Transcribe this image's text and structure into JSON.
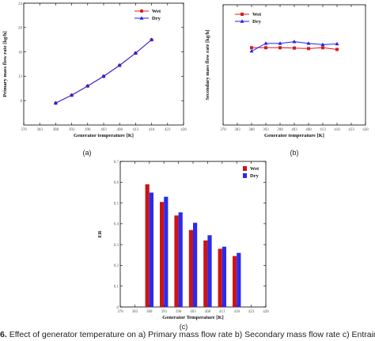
{
  "chart_data": [
    {
      "id": "a",
      "type": "line",
      "panel_label": "(a)",
      "xlabel": "Generator temperature [K]",
      "ylabel": "Primary mass flow rate [kg/h]",
      "xlim": [
        378,
        428
      ],
      "ylim": [
        4,
        24
      ],
      "xticks": [
        378,
        383,
        388,
        393,
        398,
        403,
        408,
        413,
        418,
        423,
        428
      ],
      "yticks": [
        8,
        12,
        16,
        20,
        24
      ],
      "x": [
        388,
        393,
        398,
        403,
        408,
        413,
        418
      ],
      "series": [
        {
          "name": "Wet",
          "color": "#d81b1b",
          "marker": "circle",
          "values": [
            7.6,
            8.9,
            10.4,
            12.0,
            13.8,
            15.8,
            18.0
          ]
        },
        {
          "name": "Dry",
          "color": "#2222ee",
          "marker": "triangle",
          "values": [
            7.6,
            8.9,
            10.4,
            12.0,
            13.8,
            15.8,
            18.0
          ]
        }
      ],
      "legend": "top-right",
      "grid": false
    },
    {
      "id": "b",
      "type": "line",
      "panel_label": "(b)",
      "xlabel": "Generator temperature [K]",
      "ylabel": "Secondary mass flow rate [kg/h]",
      "xlim": [
        378,
        428
      ],
      "ylim": [
        0,
        7
      ],
      "xticks": [
        378,
        383,
        388,
        393,
        398,
        403,
        408,
        413,
        418,
        423,
        428
      ],
      "yticks": [],
      "x": [
        388,
        393,
        398,
        403,
        408,
        413,
        418
      ],
      "series": [
        {
          "name": "Wet",
          "color": "#d81b1b",
          "marker": "square",
          "values": [
            4.5,
            4.5,
            4.5,
            4.48,
            4.45,
            4.5,
            4.4
          ]
        },
        {
          "name": "Dry",
          "color": "#2222ee",
          "marker": "triangle",
          "values": [
            4.3,
            4.75,
            4.75,
            4.85,
            4.75,
            4.68,
            4.72
          ]
        }
      ],
      "legend": "top-left",
      "grid": false
    },
    {
      "id": "c",
      "type": "bar",
      "panel_label": "(c)",
      "xlabel": "Generator Temperature [K]",
      "ylabel": "ER",
      "xlim": [
        378,
        428
      ],
      "ylim": [
        0,
        0.7
      ],
      "xticks": [
        378,
        383,
        388,
        393,
        398,
        403,
        408,
        413,
        418,
        423,
        428
      ],
      "yticks": [
        0,
        0.1,
        0.2,
        0.3,
        0.4,
        0.5,
        0.6,
        0.7
      ],
      "x": [
        388,
        393,
        398,
        403,
        408,
        413,
        418
      ],
      "series": [
        {
          "name": "Wet",
          "color": "#cc1414",
          "values": [
            0.59,
            0.505,
            0.44,
            0.37,
            0.32,
            0.28,
            0.245
          ]
        },
        {
          "name": "Dry",
          "color": "#2a2af0",
          "values": [
            0.55,
            0.53,
            0.455,
            0.405,
            0.345,
            0.29,
            0.26
          ]
        }
      ],
      "legend": "top-right",
      "grid": false
    }
  ],
  "caption": {
    "figure_label": "6.",
    "text": "Effect of generator temperature on a) Primary mass flow rate b) Secondary mass flow rate c) Entrainment"
  }
}
